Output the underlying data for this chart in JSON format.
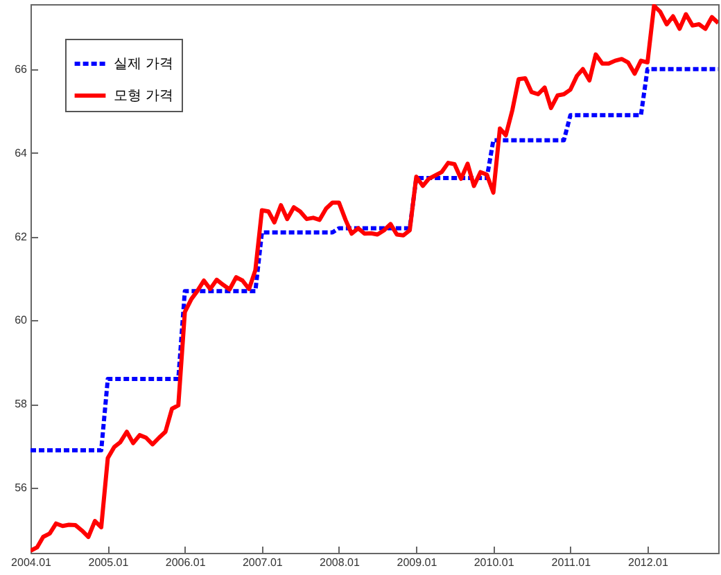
{
  "chart_data": {
    "type": "line",
    "x": [
      "2004-01",
      "2004-02",
      "2004-03",
      "2004-04",
      "2004-05",
      "2004-06",
      "2004-07",
      "2004-08",
      "2004-09",
      "2004-10",
      "2004-11",
      "2004-12",
      "2005-01",
      "2005-02",
      "2005-03",
      "2005-04",
      "2005-05",
      "2005-06",
      "2005-07",
      "2005-08",
      "2005-09",
      "2005-10",
      "2005-11",
      "2005-12",
      "2006-01",
      "2006-02",
      "2006-03",
      "2006-04",
      "2006-05",
      "2006-06",
      "2006-07",
      "2006-08",
      "2006-09",
      "2006-10",
      "2006-11",
      "2006-12",
      "2007-01",
      "2007-02",
      "2007-03",
      "2007-04",
      "2007-05",
      "2007-06",
      "2007-07",
      "2007-08",
      "2007-09",
      "2007-10",
      "2007-11",
      "2007-12",
      "2008-01",
      "2008-02",
      "2008-03",
      "2008-04",
      "2008-05",
      "2008-06",
      "2008-07",
      "2008-08",
      "2008-09",
      "2008-10",
      "2008-11",
      "2008-12",
      "2009-01",
      "2009-02",
      "2009-03",
      "2009-04",
      "2009-05",
      "2009-06",
      "2009-07",
      "2009-08",
      "2009-09",
      "2009-10",
      "2009-11",
      "2009-12",
      "2010-01",
      "2010-02",
      "2010-03",
      "2010-04",
      "2010-05",
      "2010-06",
      "2010-07",
      "2010-08",
      "2010-09",
      "2010-10",
      "2010-11",
      "2010-12",
      "2011-01",
      "2011-02",
      "2011-03",
      "2011-04",
      "2011-05",
      "2011-06",
      "2011-07",
      "2011-08",
      "2011-09",
      "2011-10",
      "2011-11",
      "2011-12",
      "2012-01",
      "2012-02",
      "2012-03",
      "2012-04",
      "2012-05",
      "2012-06",
      "2012-07",
      "2012-08",
      "2012-09",
      "2012-10",
      "2012-11",
      "2012-12"
    ],
    "series": [
      {
        "name": "실제 가격",
        "color": "#0000ff",
        "line_style": "dashed",
        "values": [
          56.9,
          56.9,
          56.9,
          56.9,
          56.9,
          56.9,
          56.9,
          56.9,
          56.9,
          56.9,
          56.9,
          56.9,
          58.6,
          58.6,
          58.6,
          58.6,
          58.6,
          58.6,
          58.6,
          58.6,
          58.6,
          58.6,
          58.6,
          58.6,
          60.7,
          60.7,
          60.7,
          60.7,
          60.7,
          60.7,
          60.7,
          60.7,
          60.7,
          60.7,
          60.7,
          60.7,
          62.1,
          62.1,
          62.1,
          62.1,
          62.1,
          62.1,
          62.1,
          62.1,
          62.1,
          62.1,
          62.1,
          62.1,
          62.2,
          62.2,
          62.2,
          62.2,
          62.2,
          62.2,
          62.2,
          62.2,
          62.2,
          62.2,
          62.2,
          62.2,
          63.4,
          63.4,
          63.4,
          63.4,
          63.4,
          63.4,
          63.4,
          63.4,
          63.4,
          63.4,
          63.4,
          63.4,
          64.3,
          64.3,
          64.3,
          64.3,
          64.3,
          64.3,
          64.3,
          64.3,
          64.3,
          64.3,
          64.3,
          64.3,
          64.9,
          64.9,
          64.9,
          64.9,
          64.9,
          64.9,
          64.9,
          64.9,
          64.9,
          64.9,
          64.9,
          64.9,
          66.0,
          66.0,
          66.0,
          66.0,
          66.0,
          66.0,
          66.0,
          66.0,
          66.0,
          66.0,
          66.0,
          66.0
        ]
      },
      {
        "name": "모형 가격",
        "color": "#ff0000",
        "line_style": "solid",
        "values": [
          54.5,
          54.58,
          54.83,
          54.91,
          55.15,
          55.09,
          55.12,
          55.11,
          54.98,
          54.83,
          55.21,
          55.06,
          56.71,
          56.98,
          57.09,
          57.34,
          57.07,
          57.26,
          57.2,
          57.04,
          57.2,
          57.34,
          57.89,
          57.97,
          60.2,
          60.51,
          60.7,
          60.95,
          60.75,
          60.97,
          60.85,
          60.74,
          61.03,
          60.95,
          60.75,
          61.2,
          62.63,
          62.6,
          62.34,
          62.75,
          62.42,
          62.7,
          62.6,
          62.42,
          62.45,
          62.4,
          62.67,
          62.81,
          62.81,
          62.4,
          62.07,
          62.2,
          62.07,
          62.08,
          62.05,
          62.15,
          62.3,
          62.05,
          62.03,
          62.15,
          63.43,
          63.21,
          63.38,
          63.46,
          63.54,
          63.76,
          63.73,
          63.38,
          63.74,
          63.21,
          63.54,
          63.48,
          63.05,
          64.58,
          64.42,
          65.02,
          65.76,
          65.78,
          65.45,
          65.4,
          65.56,
          65.07,
          65.37,
          65.4,
          65.51,
          65.84,
          66.0,
          65.73,
          66.35,
          66.13,
          66.13,
          66.2,
          66.24,
          66.16,
          65.89,
          66.2,
          66.16,
          67.51,
          67.37,
          67.07,
          67.26,
          66.96,
          67.31,
          67.04,
          67.07,
          66.96,
          67.24,
          67.1
        ]
      }
    ],
    "xlim": [
      "2004-01",
      "2012-12"
    ],
    "xticks": [
      {
        "value": "2004-01",
        "label": "2004.01"
      },
      {
        "value": "2005-01",
        "label": "2005.01"
      },
      {
        "value": "2006-01",
        "label": "2006.01"
      },
      {
        "value": "2007-01",
        "label": "2007.01"
      },
      {
        "value": "2008-01",
        "label": "2008.01"
      },
      {
        "value": "2009-01",
        "label": "2009.01"
      },
      {
        "value": "2010-01",
        "label": "2010.01"
      },
      {
        "value": "2011-01",
        "label": "2011.01"
      },
      {
        "value": "2012-01",
        "label": "2012.01"
      }
    ],
    "ylim": [
      54.45,
      67.55
    ],
    "yticks": [
      56,
      58,
      60,
      62,
      64,
      66
    ],
    "legend": "top left",
    "grid": false,
    "marker": "none"
  }
}
